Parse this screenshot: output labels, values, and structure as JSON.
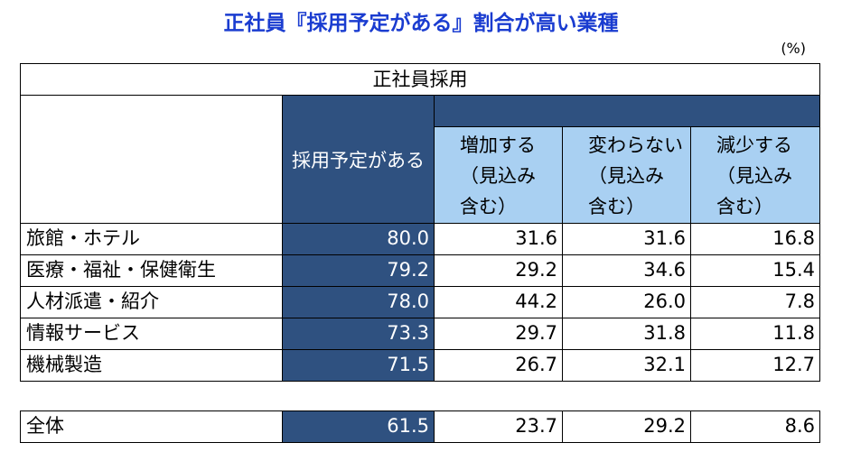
{
  "title": "正社員『採用予定がある』割合が高い業種",
  "unit": "(%)",
  "table": {
    "group_header": "正社員採用",
    "headers": [
      [
        "採用予定がある"
      ],
      [
        "増加する",
        "（見込み",
        "含む）"
      ],
      [
        "変わらない",
        "（見込み",
        "含む）"
      ],
      [
        "減少する",
        "（見込み",
        "含む）"
      ]
    ],
    "rows": [
      {
        "label": "旅館・ホテル",
        "values": [
          "80.0",
          "31.6",
          "31.6",
          "16.8"
        ]
      },
      {
        "label": "医療・福祉・保健衛生",
        "values": [
          "79.2",
          "29.2",
          "34.6",
          "15.4"
        ]
      },
      {
        "label": "人材派遣・紹介",
        "values": [
          "78.0",
          "44.2",
          "26.0",
          "7.8"
        ]
      },
      {
        "label": "情報サービス",
        "values": [
          "73.3",
          "29.7",
          "31.8",
          "11.8"
        ]
      },
      {
        "label": "機械製造",
        "values": [
          "71.5",
          "26.7",
          "32.1",
          "12.7"
        ]
      }
    ],
    "total": {
      "label": "全体",
      "values": [
        "61.5",
        "23.7",
        "29.2",
        "8.6"
      ]
    }
  }
}
